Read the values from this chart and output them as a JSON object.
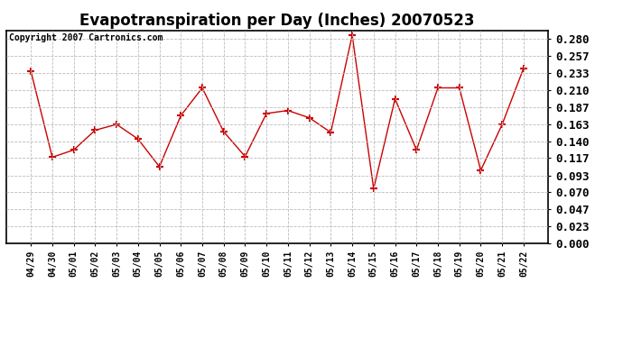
{
  "title": "Evapotranspiration per Day (Inches) 20070523",
  "copyright": "Copyright 2007 Cartronics.com",
  "dates": [
    "04/29",
    "04/30",
    "05/01",
    "05/02",
    "05/03",
    "05/04",
    "05/05",
    "05/06",
    "05/07",
    "05/08",
    "05/09",
    "05/10",
    "05/11",
    "05/12",
    "05/13",
    "05/14",
    "05/15",
    "05/16",
    "05/17",
    "05/18",
    "05/19",
    "05/20",
    "05/21",
    "05/22"
  ],
  "values": [
    0.236,
    0.118,
    0.128,
    0.155,
    0.163,
    0.143,
    0.105,
    0.175,
    0.213,
    0.153,
    0.119,
    0.178,
    0.182,
    0.172,
    0.152,
    0.285,
    0.075,
    0.198,
    0.128,
    0.213,
    0.213,
    0.1,
    0.163,
    0.24
  ],
  "line_color": "#cc0000",
  "marker": "+",
  "marker_size": 6,
  "background_color": "#ffffff",
  "plot_bg_color": "#ffffff",
  "grid_color": "#bbbbbb",
  "ylim": [
    0.0,
    0.2917
  ],
  "yticks": [
    0.0,
    0.023,
    0.047,
    0.07,
    0.093,
    0.117,
    0.14,
    0.163,
    0.187,
    0.21,
    0.233,
    0.257,
    0.28
  ],
  "title_fontsize": 12,
  "copyright_fontsize": 7,
  "tick_fontsize": 8,
  "ytick_fontsize": 9,
  "xtick_fontsize": 7
}
